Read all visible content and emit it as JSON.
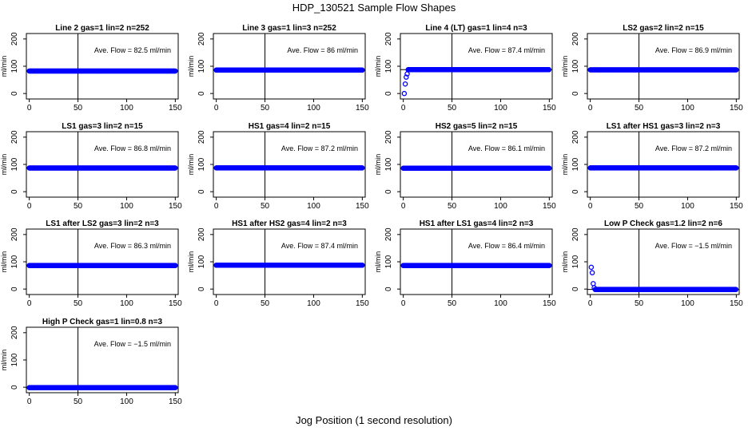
{
  "figure": {
    "title": "HDP_130521  Sample Flow Shapes",
    "xlabel": "Jog Position (1 second resolution)"
  },
  "colors": {
    "points": "#0000ff",
    "axes": "#000000",
    "background": "#ffffff"
  },
  "chart_data": [
    {
      "type": "scatter",
      "title": "Line 2 gas=1 lin=2 n=252",
      "ylabel": "ml/min",
      "annotation": "Ave. Flow =  82.5  ml/min",
      "xlim": [
        0,
        150
      ],
      "ylim": [
        -20,
        220
      ],
      "xticks": [
        0,
        50,
        100,
        150
      ],
      "yticks": [
        0,
        100,
        200
      ],
      "vline": 50,
      "hline": 82.5,
      "series": [
        {
          "name": "flow",
          "shape": "flat",
          "x_range": [
            0,
            150
          ],
          "y": 82.5
        }
      ]
    },
    {
      "type": "scatter",
      "title": "Line 3 gas=1 lin=3 n=252",
      "ylabel": "ml/min",
      "annotation": "Ave. Flow =  86  ml/min",
      "xlim": [
        0,
        150
      ],
      "ylim": [
        -20,
        220
      ],
      "xticks": [
        0,
        50,
        100,
        150
      ],
      "yticks": [
        0,
        100,
        200
      ],
      "vline": 50,
      "hline": 86,
      "series": [
        {
          "name": "flow",
          "shape": "flat",
          "x_range": [
            0,
            150
          ],
          "y": 86
        }
      ]
    },
    {
      "type": "scatter",
      "title": "Line 4 (LT) gas=1 lin=4 n=3",
      "ylabel": "ml/min",
      "annotation": "Ave. Flow =  87.4  ml/min",
      "xlim": [
        0,
        150
      ],
      "ylim": [
        -20,
        220
      ],
      "xticks": [
        0,
        50,
        100,
        150
      ],
      "yticks": [
        0,
        100,
        200
      ],
      "vline": 50,
      "hline": 87.4,
      "series": [
        {
          "name": "flow",
          "shape": "flat",
          "x_range": [
            5,
            150
          ],
          "y": 87.4,
          "extra_points": [
            [
              1,
              0
            ],
            [
              2,
              35
            ],
            [
              3,
              60
            ],
            [
              4,
              72
            ]
          ]
        }
      ]
    },
    {
      "type": "scatter",
      "title": "LS2 gas=2 lin=2 n=15",
      "ylabel": "ml/min",
      "annotation": "Ave. Flow =  86.9  ml/min",
      "xlim": [
        0,
        150
      ],
      "ylim": [
        -20,
        220
      ],
      "xticks": [
        0,
        50,
        100,
        150
      ],
      "yticks": [
        0,
        100,
        200
      ],
      "vline": 50,
      "hline": 86.9,
      "series": [
        {
          "name": "flow",
          "shape": "flat",
          "x_range": [
            0,
            150
          ],
          "y": 86.9
        }
      ]
    },
    {
      "type": "scatter",
      "title": "LS1 gas=3 lin=2 n=15",
      "ylabel": "ml/min",
      "annotation": "Ave. Flow =  86.8  ml/min",
      "xlim": [
        0,
        150
      ],
      "ylim": [
        -20,
        220
      ],
      "xticks": [
        0,
        50,
        100,
        150
      ],
      "yticks": [
        0,
        100,
        200
      ],
      "vline": 50,
      "hline": 86.8,
      "series": [
        {
          "name": "flow",
          "shape": "flat",
          "x_range": [
            0,
            150
          ],
          "y": 86.8
        }
      ]
    },
    {
      "type": "scatter",
      "title": "HS1 gas=4 lin=2 n=15",
      "ylabel": "ml/min",
      "annotation": "Ave. Flow =  87.2  ml/min",
      "xlim": [
        0,
        150
      ],
      "ylim": [
        -20,
        220
      ],
      "xticks": [
        0,
        50,
        100,
        150
      ],
      "yticks": [
        0,
        100,
        200
      ],
      "vline": 50,
      "hline": 87.2,
      "series": [
        {
          "name": "flow",
          "shape": "flat",
          "x_range": [
            0,
            150
          ],
          "y": 87.2
        }
      ]
    },
    {
      "type": "scatter",
      "title": "HS2 gas=5 lin=2 n=15",
      "ylabel": "ml/min",
      "annotation": "Ave. Flow =  86.1  ml/min",
      "xlim": [
        0,
        150
      ],
      "ylim": [
        -20,
        220
      ],
      "xticks": [
        0,
        50,
        100,
        150
      ],
      "yticks": [
        0,
        100,
        200
      ],
      "vline": 50,
      "hline": 86.1,
      "series": [
        {
          "name": "flow",
          "shape": "flat",
          "x_range": [
            0,
            150
          ],
          "y": 86.1
        }
      ]
    },
    {
      "type": "scatter",
      "title": "LS1 after HS1 gas=3 lin=2 n=3",
      "ylabel": "ml/min",
      "annotation": "Ave. Flow =  87.2  ml/min",
      "xlim": [
        0,
        150
      ],
      "ylim": [
        -20,
        220
      ],
      "xticks": [
        0,
        50,
        100,
        150
      ],
      "yticks": [
        0,
        100,
        200
      ],
      "vline": 50,
      "hline": 87.2,
      "series": [
        {
          "name": "flow",
          "shape": "flat",
          "x_range": [
            0,
            150
          ],
          "y": 87.2
        }
      ]
    },
    {
      "type": "scatter",
      "title": "LS1 after LS2 gas=3 lin=2 n=3",
      "ylabel": "ml/min",
      "annotation": "Ave. Flow =  86.3  ml/min",
      "xlim": [
        0,
        150
      ],
      "ylim": [
        -20,
        220
      ],
      "xticks": [
        0,
        50,
        100,
        150
      ],
      "yticks": [
        0,
        100,
        200
      ],
      "vline": 50,
      "hline": 86.3,
      "series": [
        {
          "name": "flow",
          "shape": "flat",
          "x_range": [
            0,
            150
          ],
          "y": 86.3
        }
      ]
    },
    {
      "type": "scatter",
      "title": "HS1 after HS2 gas=4 lin=2 n=3",
      "ylabel": "ml/min",
      "annotation": "Ave. Flow =  87.4  ml/min",
      "xlim": [
        0,
        150
      ],
      "ylim": [
        -20,
        220
      ],
      "xticks": [
        0,
        50,
        100,
        150
      ],
      "yticks": [
        0,
        100,
        200
      ],
      "vline": 50,
      "hline": 87.4,
      "series": [
        {
          "name": "flow",
          "shape": "flat",
          "x_range": [
            0,
            150
          ],
          "y": 87.4
        }
      ]
    },
    {
      "type": "scatter",
      "title": "HS1 after LS1 gas=4 lin=2 n=3",
      "ylabel": "ml/min",
      "annotation": "Ave. Flow =  86.4  ml/min",
      "xlim": [
        0,
        150
      ],
      "ylim": [
        -20,
        220
      ],
      "xticks": [
        0,
        50,
        100,
        150
      ],
      "yticks": [
        0,
        100,
        200
      ],
      "vline": 50,
      "hline": 86.4,
      "series": [
        {
          "name": "flow",
          "shape": "flat",
          "x_range": [
            0,
            150
          ],
          "y": 86.4
        }
      ]
    },
    {
      "type": "scatter",
      "title": "Low P Check gas=1.2 lin=2 n=6",
      "ylabel": "ml/min",
      "annotation": "Ave. Flow =  −1.5  ml/min",
      "xlim": [
        0,
        150
      ],
      "ylim": [
        -20,
        220
      ],
      "xticks": [
        0,
        50,
        100,
        150
      ],
      "yticks": [
        0,
        100,
        200
      ],
      "vline": 50,
      "hline": -1.5,
      "series": [
        {
          "name": "flow",
          "shape": "flat",
          "x_range": [
            5,
            150
          ],
          "y": -1.5,
          "extra_points": [
            [
              1,
              80
            ],
            [
              2,
              60
            ],
            [
              3,
              20
            ],
            [
              4,
              5
            ]
          ]
        }
      ]
    },
    {
      "type": "scatter",
      "title": "High P Check gas=1 lin=0.8 n=3",
      "ylabel": "ml/min",
      "annotation": "Ave. Flow =  −1.5  ml/min",
      "xlim": [
        0,
        150
      ],
      "ylim": [
        -20,
        220
      ],
      "xticks": [
        0,
        50,
        100,
        150
      ],
      "yticks": [
        0,
        100,
        200
      ],
      "vline": 50,
      "hline": -1.5,
      "series": [
        {
          "name": "flow",
          "shape": "flat",
          "x_range": [
            0,
            150
          ],
          "y": -1.5
        }
      ]
    }
  ]
}
